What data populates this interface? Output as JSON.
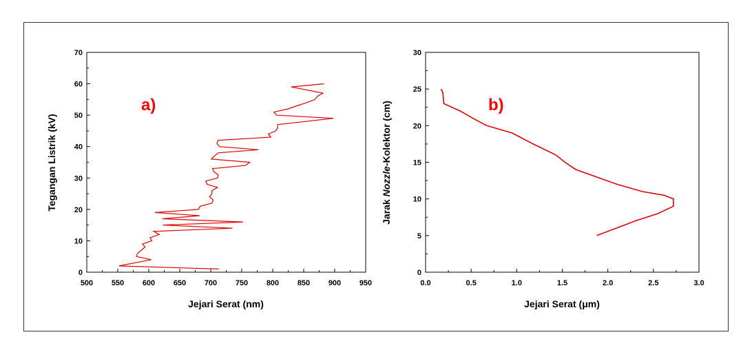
{
  "chart_data": [
    {
      "type": "line",
      "panel_label": "a)",
      "xlabel": "Jejari Serat (nm)",
      "ylabel": "Tegangan Listrik (kV)",
      "xlim": [
        500,
        950
      ],
      "ylim": [
        0,
        70
      ],
      "xticks": [
        500,
        550,
        600,
        650,
        700,
        750,
        800,
        850,
        900,
        950
      ],
      "yticks": [
        0,
        10,
        20,
        30,
        40,
        50,
        60,
        70
      ],
      "line_color": "#e00000",
      "x": [
        713,
        552,
        604,
        580,
        582,
        594,
        590,
        605,
        602,
        617,
        608,
        735,
        623,
        752,
        622,
        682,
        610,
        680,
        683,
        702,
        704,
        698,
        702,
        702,
        711,
        694,
        692,
        711,
        712,
        705,
        703,
        756,
        763,
        701,
        706,
        712,
        777,
        714,
        710,
        712,
        797,
        793,
        805,
        808,
        808,
        898,
        806,
        802,
        825,
        839,
        855,
        868,
        872,
        881,
        830,
        883
      ],
      "y": [
        1,
        2,
        4,
        5,
        6,
        8,
        9,
        10,
        11,
        12,
        13,
        14,
        15,
        16,
        17,
        18,
        19,
        20,
        21,
        22,
        23,
        24,
        25,
        26,
        27,
        28,
        29,
        30,
        31,
        32,
        33,
        34,
        35,
        36,
        37,
        38,
        39,
        40,
        41,
        42,
        43,
        44,
        45,
        46,
        47,
        49,
        50,
        51,
        52,
        53,
        54,
        55,
        56,
        57,
        59,
        60
      ]
    },
    {
      "type": "line",
      "panel_label": "b)",
      "xlabel_prefix": "Jejari Serat (",
      "xlabel_unit": "μm",
      "xlabel_suffix": ")",
      "ylabel_prefix": "Jarak ",
      "ylabel_italic": "Nozzle",
      "ylabel_suffix": "-Kolektor (cm)",
      "xlim": [
        0.0,
        3.0
      ],
      "ylim": [
        0,
        30
      ],
      "xticks": [
        "0.0",
        "0.5",
        "1.0",
        "1.5",
        "2.0",
        "2.5",
        "3.0"
      ],
      "yticks": [
        0,
        5,
        10,
        15,
        20,
        25,
        30
      ],
      "line_color": "#e00000",
      "x": [
        1.88,
        2.3,
        2.55,
        2.72,
        2.72,
        2.62,
        2.38,
        2.1,
        1.65,
        1.53,
        1.43,
        1.18,
        0.95,
        0.67,
        0.52,
        0.38,
        0.2,
        0.19,
        0.17
      ],
      "y": [
        5,
        7,
        8,
        9,
        10,
        10.5,
        11,
        12,
        14,
        15,
        16,
        17.5,
        19,
        20,
        21,
        22,
        23,
        24.5,
        25
      ]
    }
  ]
}
